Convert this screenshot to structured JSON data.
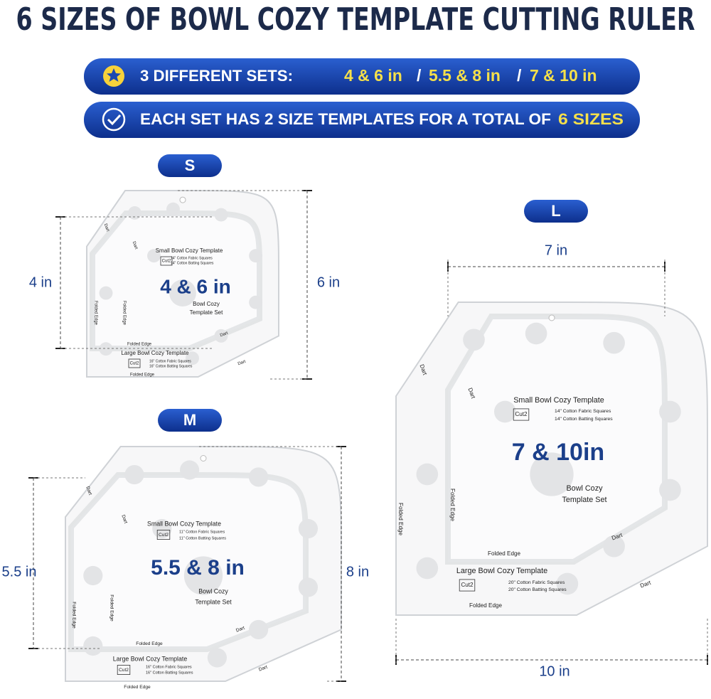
{
  "title": "6 SIZES OF BOWL COZY TEMPLATE CUTTING RULER",
  "banner_sets": {
    "label": "3 DIFFERENT SETS:",
    "sets": [
      "4 & 6 in",
      "5.5 & 8 in",
      "7 & 10 in"
    ],
    "separator": "/"
  },
  "banner_total": {
    "text": "EACH SET HAS 2 SIZE TEMPLATES FOR A TOTAL OF",
    "highlight": "6 SIZES"
  },
  "templates": [
    {
      "size": "S",
      "set": "4 & 6 in",
      "small_dim": "4 in",
      "large_dim": "6 in",
      "caption": [
        "Bowl Cozy",
        "Template Set"
      ],
      "folded_edge": "Folded Edge",
      "dart": "Dart",
      "small": {
        "title": "Small Bowl Cozy Template",
        "cut": "Cut2",
        "fabric": "14\" Cotton Fabric Squares",
        "batting": "14\" Cotton Batting Squares"
      },
      "large": {
        "title": "Large Bowl Cozy Template",
        "cut": "Cut2",
        "fabric": "16\" Cotton Fabric Squares",
        "batting": "16\" Cotton Batting Squares"
      }
    },
    {
      "size": "M",
      "set": "5.5 & 8 in",
      "small_dim": "5.5 in",
      "large_dim": "8 in",
      "caption": [
        "Bowl Cozy",
        "Template Set"
      ],
      "folded_edge": "Folded Edge",
      "dart": "Dart",
      "small": {
        "title": "Small Bowl Cozy Template",
        "cut": "Cut2",
        "fabric": "11\" Cotton Fabric Squares",
        "batting": "11\" Cotton Batting Squares"
      },
      "large": {
        "title": "Large Bowl Cozy Template",
        "cut": "Cut2",
        "fabric": "16\" Cotton Fabric Squares",
        "batting": "16\" Cotton Batting Squares"
      }
    },
    {
      "size": "L",
      "set": "7 & 10in",
      "small_dim": "7 in",
      "large_dim": "10 in",
      "caption": [
        "Bowl Cozy",
        "Template Set"
      ],
      "folded_edge": "Folded Edge",
      "dart": "Dart",
      "small": {
        "title": "Small Bowl Cozy Template",
        "cut": "Cut2",
        "fabric": "14\" Cotton Fabric Squares",
        "batting": "14\" Cotton Batting Squares"
      },
      "large": {
        "title": "Large Bowl Cozy Template",
        "cut": "Cut2",
        "fabric": "20\" Cotton Fabric Squares",
        "batting": "20\" Cotton Batting Squares"
      }
    }
  ]
}
